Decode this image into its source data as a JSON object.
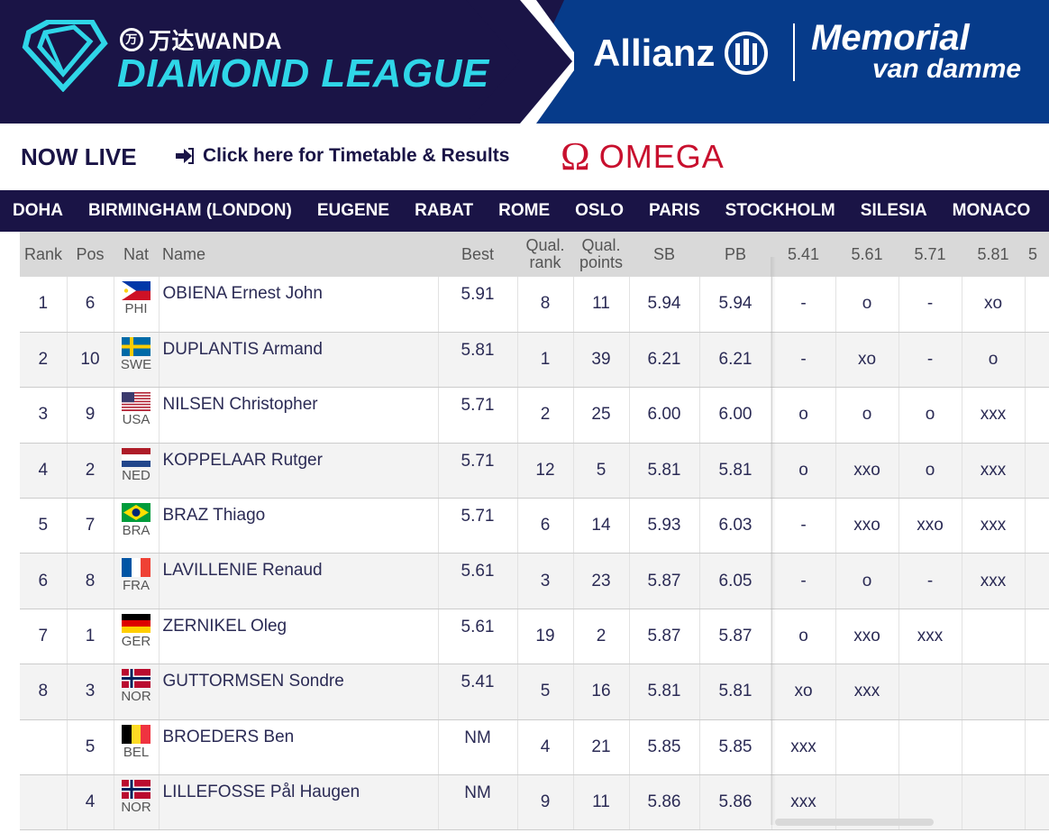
{
  "banner": {
    "brand_top": "万达WANDA",
    "brand_logo_char": "万",
    "league": "DIAMOND LEAGUE",
    "sponsor": "Allianz",
    "meeting_line1": "Memorial",
    "meeting_line2": "van damme"
  },
  "livebar": {
    "now_live": "NOW LIVE",
    "timetable_link": "Click here for Timetable & Results",
    "omega_symbol": "Ω",
    "omega": "OMEGA"
  },
  "nav": {
    "items": [
      "DOHA",
      "BIRMINGHAM (LONDON)",
      "EUGENE",
      "RABAT",
      "ROME",
      "OSLO",
      "PARIS",
      "STOCKHOLM",
      "SILESIA",
      "MONACO"
    ]
  },
  "table": {
    "headers": {
      "rank": "Rank",
      "pos": "Pos",
      "nat": "Nat",
      "name": "Name",
      "best": "Best",
      "qual_rank_1": "Qual.",
      "qual_rank_2": "rank",
      "qual_points_1": "Qual.",
      "qual_points_2": "points",
      "sb": "SB",
      "pb": "PB",
      "h1": "5.41",
      "h2": "5.61",
      "h3": "5.71",
      "h4": "5.81",
      "h5": "5"
    },
    "rows": [
      {
        "rank": "1",
        "pos": "6",
        "nat": "PHI",
        "name": "OBIENA Ernest John",
        "best": "5.91",
        "qrank": "8",
        "qpoints": "11",
        "sb": "5.94",
        "pb": "5.94",
        "a": [
          "-",
          "o",
          "-",
          "xo"
        ]
      },
      {
        "rank": "2",
        "pos": "10",
        "nat": "SWE",
        "name": "DUPLANTIS Armand",
        "best": "5.81",
        "qrank": "1",
        "qpoints": "39",
        "sb": "6.21",
        "pb": "6.21",
        "a": [
          "-",
          "xo",
          "-",
          "o"
        ]
      },
      {
        "rank": "3",
        "pos": "9",
        "nat": "USA",
        "name": "NILSEN Christopher",
        "best": "5.71",
        "qrank": "2",
        "qpoints": "25",
        "sb": "6.00",
        "pb": "6.00",
        "a": [
          "o",
          "o",
          "o",
          "xxx"
        ]
      },
      {
        "rank": "4",
        "pos": "2",
        "nat": "NED",
        "name": "KOPPELAAR Rutger",
        "best": "5.71",
        "qrank": "12",
        "qpoints": "5",
        "sb": "5.81",
        "pb": "5.81",
        "a": [
          "o",
          "xxo",
          "o",
          "xxx"
        ]
      },
      {
        "rank": "5",
        "pos": "7",
        "nat": "BRA",
        "name": "BRAZ Thiago",
        "best": "5.71",
        "qrank": "6",
        "qpoints": "14",
        "sb": "5.93",
        "pb": "6.03",
        "a": [
          "-",
          "xxo",
          "xxo",
          "xxx"
        ]
      },
      {
        "rank": "6",
        "pos": "8",
        "nat": "FRA",
        "name": "LAVILLENIE Renaud",
        "best": "5.61",
        "qrank": "3",
        "qpoints": "23",
        "sb": "5.87",
        "pb": "6.05",
        "a": [
          "-",
          "o",
          "-",
          "xxx"
        ]
      },
      {
        "rank": "7",
        "pos": "1",
        "nat": "GER",
        "name": "ZERNIKEL Oleg",
        "best": "5.61",
        "qrank": "19",
        "qpoints": "2",
        "sb": "5.87",
        "pb": "5.87",
        "a": [
          "o",
          "xxo",
          "xxx",
          ""
        ]
      },
      {
        "rank": "8",
        "pos": "3",
        "nat": "NOR",
        "name": "GUTTORMSEN Sondre",
        "best": "5.41",
        "qrank": "5",
        "qpoints": "16",
        "sb": "5.81",
        "pb": "5.81",
        "a": [
          "xo",
          "xxx",
          "",
          ""
        ]
      },
      {
        "rank": "",
        "pos": "5",
        "nat": "BEL",
        "name": "BROEDERS Ben",
        "best": "NM",
        "qrank": "4",
        "qpoints": "21",
        "sb": "5.85",
        "pb": "5.85",
        "a": [
          "xxx",
          "",
          "",
          ""
        ]
      },
      {
        "rank": "",
        "pos": "4",
        "nat": "NOR",
        "name": "LILLEFOSSE Pål Haugen",
        "best": "NM",
        "qrank": "9",
        "qpoints": "11",
        "sb": "5.86",
        "pb": "5.86",
        "a": [
          "xxx",
          "",
          "",
          ""
        ]
      }
    ]
  },
  "colors": {
    "navy": "#1a1446",
    "blue": "#063b8a",
    "cyan": "#2fd6e8",
    "omega_red": "#c8102e"
  }
}
